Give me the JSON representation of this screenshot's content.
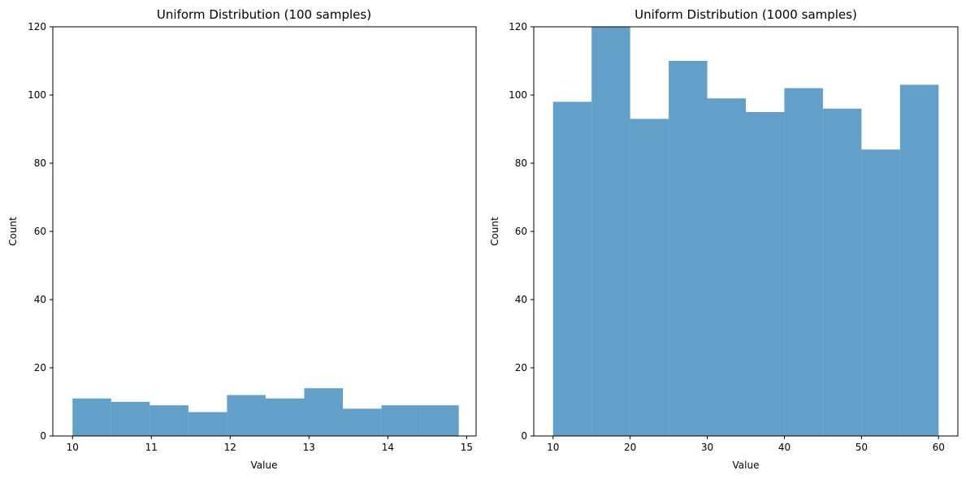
{
  "chart_data": [
    {
      "type": "bar",
      "title": "Uniform Distribution (100 samples)",
      "xlabel": "Value",
      "ylabel": "Count",
      "xlim": [
        9.75,
        15.12
      ],
      "ylim": [
        0,
        120
      ],
      "xticks": [
        "10",
        "11",
        "12",
        "13",
        "14",
        "15"
      ],
      "yticks": [
        "0",
        "20",
        "40",
        "60",
        "80",
        "100",
        "120"
      ],
      "bins": [
        {
          "x0": 10.0,
          "x1": 10.49,
          "value": 11
        },
        {
          "x0": 10.49,
          "x1": 10.98,
          "value": 10
        },
        {
          "x0": 10.98,
          "x1": 11.47,
          "value": 9
        },
        {
          "x0": 11.47,
          "x1": 11.96,
          "value": 7
        },
        {
          "x0": 11.96,
          "x1": 12.45,
          "value": 12
        },
        {
          "x0": 12.45,
          "x1": 12.94,
          "value": 11
        },
        {
          "x0": 12.94,
          "x1": 13.43,
          "value": 14
        },
        {
          "x0": 13.43,
          "x1": 13.92,
          "value": 8
        },
        {
          "x0": 13.92,
          "x1": 14.41,
          "value": 9
        },
        {
          "x0": 14.41,
          "x1": 14.9,
          "value": 9
        }
      ],
      "grid": false,
      "color": "#1f77b4"
    },
    {
      "type": "bar",
      "title": "Uniform Distribution (1000 samples)",
      "xlabel": "Value",
      "ylabel": "Count",
      "xlim": [
        7.5,
        62.5
      ],
      "ylim": [
        0,
        120
      ],
      "xticks": [
        "10",
        "20",
        "30",
        "40",
        "50",
        "60"
      ],
      "yticks": [
        "0",
        "20",
        "40",
        "60",
        "80",
        "100",
        "120"
      ],
      "bins": [
        {
          "x0": 10,
          "x1": 15,
          "value": 98
        },
        {
          "x0": 15,
          "x1": 20,
          "value": 120
        },
        {
          "x0": 20,
          "x1": 25,
          "value": 93
        },
        {
          "x0": 25,
          "x1": 30,
          "value": 110
        },
        {
          "x0": 30,
          "x1": 35,
          "value": 99
        },
        {
          "x0": 35,
          "x1": 40,
          "value": 95
        },
        {
          "x0": 40,
          "x1": 45,
          "value": 102
        },
        {
          "x0": 45,
          "x1": 50,
          "value": 96
        },
        {
          "x0": 50,
          "x1": 55,
          "value": 84
        },
        {
          "x0": 55,
          "x1": 60,
          "value": 103
        }
      ],
      "grid": false,
      "color": "#1f77b4"
    }
  ]
}
